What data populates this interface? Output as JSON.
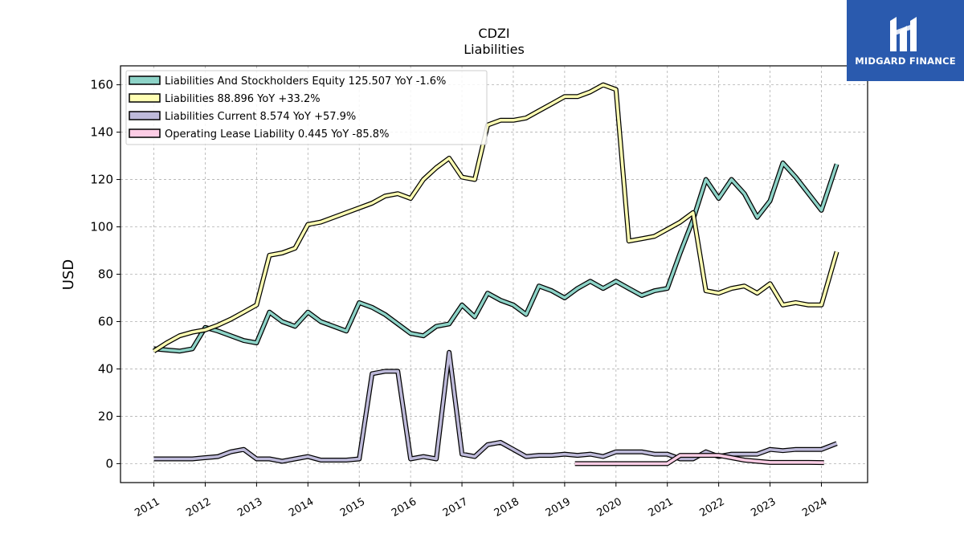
{
  "chart_data": {
    "type": "line",
    "title": "CDZI",
    "subtitle": "Liabilities",
    "ylabel": "USD",
    "xlabel": "",
    "ylim": [
      -8,
      168
    ],
    "xlim": [
      2010.35,
      2024.9
    ],
    "yticks": [
      0,
      20,
      40,
      60,
      80,
      100,
      120,
      140,
      160
    ],
    "xticks": [
      "2011",
      "2012",
      "2013",
      "2014",
      "2015",
      "2016",
      "2017",
      "2018",
      "2019",
      "2020",
      "2021",
      "2022",
      "2023",
      "2024"
    ],
    "grid": true,
    "legend_position": "top-left",
    "series": [
      {
        "name": "Liabilities And Stockholders Equity  125.507 YoY -1.6%",
        "color": "#8dd3c7",
        "points": [
          [
            2011.0,
            48.5
          ],
          [
            2011.25,
            48
          ],
          [
            2011.5,
            47.5
          ],
          [
            2011.75,
            48.5
          ],
          [
            2012.0,
            57.5
          ],
          [
            2012.25,
            56
          ],
          [
            2012.5,
            54
          ],
          [
            2012.75,
            52
          ],
          [
            2013.0,
            51
          ],
          [
            2013.25,
            64
          ],
          [
            2013.5,
            60
          ],
          [
            2013.75,
            58
          ],
          [
            2014.0,
            64
          ],
          [
            2014.25,
            60
          ],
          [
            2014.5,
            58
          ],
          [
            2014.75,
            56
          ],
          [
            2015.0,
            68
          ],
          [
            2015.25,
            66
          ],
          [
            2015.5,
            63
          ],
          [
            2015.75,
            59
          ],
          [
            2016.0,
            55
          ],
          [
            2016.25,
            54
          ],
          [
            2016.5,
            58
          ],
          [
            2016.75,
            59
          ],
          [
            2017.0,
            67
          ],
          [
            2017.25,
            62
          ],
          [
            2017.5,
            72
          ],
          [
            2017.75,
            69
          ],
          [
            2018.0,
            67
          ],
          [
            2018.25,
            63
          ],
          [
            2018.5,
            75
          ],
          [
            2018.75,
            73
          ],
          [
            2019.0,
            70
          ],
          [
            2019.25,
            74
          ],
          [
            2019.5,
            77
          ],
          [
            2019.75,
            74
          ],
          [
            2020.0,
            77
          ],
          [
            2020.25,
            74
          ],
          [
            2020.5,
            71
          ],
          [
            2020.75,
            73
          ],
          [
            2021.0,
            74
          ],
          [
            2021.25,
            89
          ],
          [
            2021.5,
            103
          ],
          [
            2021.75,
            120
          ],
          [
            2022.0,
            112
          ],
          [
            2022.25,
            120
          ],
          [
            2022.5,
            114
          ],
          [
            2022.75,
            104
          ],
          [
            2023.0,
            111
          ],
          [
            2023.25,
            127
          ],
          [
            2023.5,
            121
          ],
          [
            2023.75,
            114
          ],
          [
            2024.0,
            107
          ],
          [
            2024.3,
            126.5
          ]
        ]
      },
      {
        "name": "Liabilities  88.896 YoY +33.2%",
        "color": "#ffffb3",
        "points": [
          [
            2011.0,
            47.5
          ],
          [
            2011.25,
            51
          ],
          [
            2011.5,
            54
          ],
          [
            2011.75,
            55.5
          ],
          [
            2012.0,
            56.5
          ],
          [
            2012.25,
            58.5
          ],
          [
            2012.5,
            61
          ],
          [
            2012.75,
            64
          ],
          [
            2013.0,
            67
          ],
          [
            2013.25,
            88
          ],
          [
            2013.5,
            89
          ],
          [
            2013.75,
            91
          ],
          [
            2014.0,
            101
          ],
          [
            2014.25,
            102
          ],
          [
            2014.5,
            104
          ],
          [
            2014.75,
            106
          ],
          [
            2015.0,
            108
          ],
          [
            2015.25,
            110
          ],
          [
            2015.5,
            113
          ],
          [
            2015.75,
            114
          ],
          [
            2016.0,
            112
          ],
          [
            2016.25,
            120
          ],
          [
            2016.5,
            125
          ],
          [
            2016.75,
            129
          ],
          [
            2017.0,
            121
          ],
          [
            2017.25,
            120
          ],
          [
            2017.5,
            143
          ],
          [
            2017.75,
            145
          ],
          [
            2018.0,
            145
          ],
          [
            2018.25,
            146
          ],
          [
            2018.5,
            149
          ],
          [
            2018.75,
            152
          ],
          [
            2019.0,
            155
          ],
          [
            2019.25,
            155
          ],
          [
            2019.5,
            157
          ],
          [
            2019.75,
            160
          ],
          [
            2020.0,
            158
          ],
          [
            2020.25,
            94
          ],
          [
            2020.5,
            95
          ],
          [
            2020.75,
            96
          ],
          [
            2021.0,
            99
          ],
          [
            2021.25,
            102
          ],
          [
            2021.5,
            106
          ],
          [
            2021.75,
            73
          ],
          [
            2022.0,
            72
          ],
          [
            2022.25,
            74
          ],
          [
            2022.5,
            75
          ],
          [
            2022.75,
            72
          ],
          [
            2023.0,
            76
          ],
          [
            2023.25,
            67
          ],
          [
            2023.5,
            68
          ],
          [
            2023.75,
            67
          ],
          [
            2024.0,
            67
          ],
          [
            2024.3,
            89.5
          ]
        ]
      },
      {
        "name": "Liabilities Current  8.574 YoY +57.9%",
        "color": "#bebada",
        "points": [
          [
            2011.0,
            2
          ],
          [
            2011.25,
            2
          ],
          [
            2011.5,
            2
          ],
          [
            2011.75,
            2
          ],
          [
            2012.0,
            2.5
          ],
          [
            2012.25,
            3
          ],
          [
            2012.5,
            5
          ],
          [
            2012.75,
            6
          ],
          [
            2013.0,
            2
          ],
          [
            2013.25,
            2
          ],
          [
            2013.5,
            1
          ],
          [
            2013.75,
            2
          ],
          [
            2014.0,
            3
          ],
          [
            2014.25,
            1.5
          ],
          [
            2014.5,
            1.5
          ],
          [
            2014.75,
            1.5
          ],
          [
            2015.0,
            2
          ],
          [
            2015.25,
            38
          ],
          [
            2015.5,
            39
          ],
          [
            2015.75,
            39
          ],
          [
            2016.0,
            2
          ],
          [
            2016.25,
            3
          ],
          [
            2016.5,
            2
          ],
          [
            2016.75,
            47
          ],
          [
            2017.0,
            4
          ],
          [
            2017.25,
            3
          ],
          [
            2017.5,
            8
          ],
          [
            2017.75,
            9
          ],
          [
            2018.0,
            6
          ],
          [
            2018.25,
            3
          ],
          [
            2018.5,
            3.5
          ],
          [
            2018.75,
            3.5
          ],
          [
            2019.0,
            4
          ],
          [
            2019.25,
            3.5
          ],
          [
            2019.5,
            4
          ],
          [
            2019.75,
            3
          ],
          [
            2020.0,
            5
          ],
          [
            2020.25,
            5
          ],
          [
            2020.5,
            5
          ],
          [
            2020.75,
            4
          ],
          [
            2021.0,
            4
          ],
          [
            2021.25,
            2
          ],
          [
            2021.5,
            2
          ],
          [
            2021.75,
            5
          ],
          [
            2022.0,
            3
          ],
          [
            2022.25,
            4
          ],
          [
            2022.5,
            4
          ],
          [
            2022.75,
            4
          ],
          [
            2023.0,
            6
          ],
          [
            2023.25,
            5.5
          ],
          [
            2023.5,
            6
          ],
          [
            2023.75,
            6
          ],
          [
            2024.0,
            6
          ],
          [
            2024.3,
            8.5
          ]
        ]
      },
      {
        "name": "Operating Lease Liability  0.445 YoY -85.8%",
        "color": "#fccde5",
        "points": [
          [
            2019.2,
            0
          ],
          [
            2019.5,
            0
          ],
          [
            2019.75,
            0
          ],
          [
            2020.0,
            0
          ],
          [
            2020.25,
            0
          ],
          [
            2020.5,
            0
          ],
          [
            2020.75,
            0
          ],
          [
            2021.0,
            0
          ],
          [
            2021.25,
            3.5
          ],
          [
            2021.5,
            3.5
          ],
          [
            2021.75,
            3.5
          ],
          [
            2022.0,
            3.5
          ],
          [
            2022.25,
            2.5
          ],
          [
            2022.5,
            1.5
          ],
          [
            2022.75,
            1
          ],
          [
            2023.0,
            0.5
          ],
          [
            2023.25,
            0.5
          ],
          [
            2023.5,
            0.5
          ],
          [
            2023.75,
            0.5
          ],
          [
            2024.05,
            0.45
          ]
        ]
      }
    ]
  },
  "logo": {
    "text": "MIDGARD FINANCE",
    "color": "#2a5aae"
  }
}
